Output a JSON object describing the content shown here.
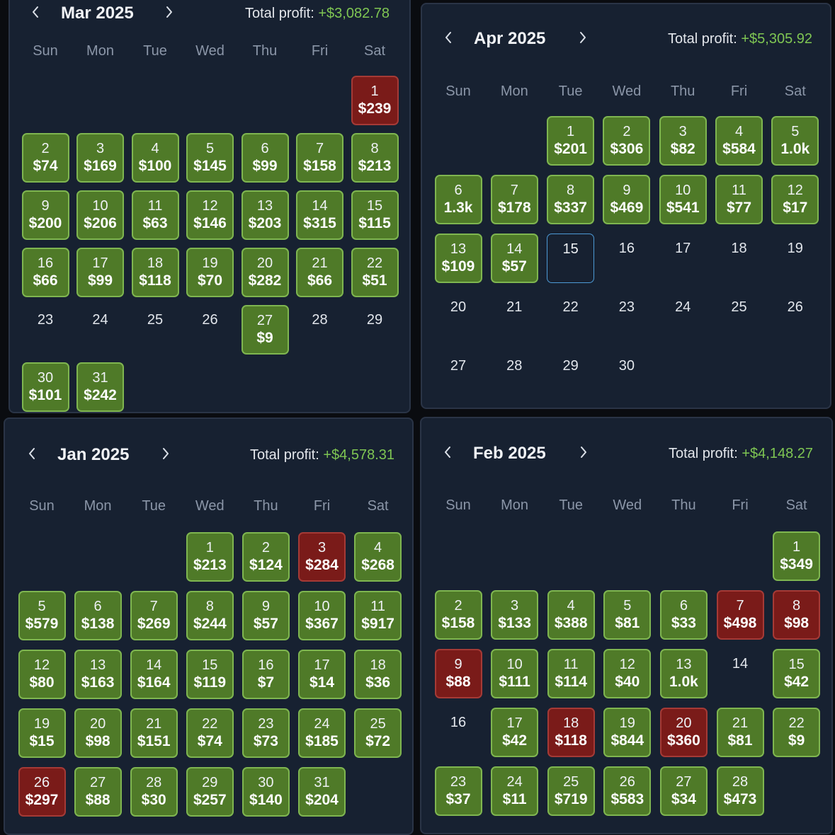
{
  "weekdays": [
    "Sun",
    "Mon",
    "Tue",
    "Wed",
    "Thu",
    "Fri",
    "Sat"
  ],
  "profit_label": "Total profit:",
  "icons": {
    "prev": "chevron-left-icon",
    "next": "chevron-right-icon"
  },
  "colors": {
    "profit_day": "#4f7a28",
    "loss_day": "#7a1b19",
    "today_border": "#4d9ad6",
    "positive_text": "#7fc653"
  },
  "calendars": [
    {
      "id": "mar",
      "title": "Mar 2025",
      "total_profit": "+$3,082.78",
      "first_weekday": 6,
      "days": [
        {
          "d": "1",
          "v": "$239",
          "s": "loss"
        },
        {
          "d": "2",
          "v": "$74",
          "s": "profit"
        },
        {
          "d": "3",
          "v": "$169",
          "s": "profit"
        },
        {
          "d": "4",
          "v": "$100",
          "s": "profit"
        },
        {
          "d": "5",
          "v": "$145",
          "s": "profit"
        },
        {
          "d": "6",
          "v": "$99",
          "s": "profit"
        },
        {
          "d": "7",
          "v": "$158",
          "s": "profit"
        },
        {
          "d": "8",
          "v": "$213",
          "s": "profit"
        },
        {
          "d": "9",
          "v": "$200",
          "s": "profit"
        },
        {
          "d": "10",
          "v": "$206",
          "s": "profit"
        },
        {
          "d": "11",
          "v": "$63",
          "s": "profit"
        },
        {
          "d": "12",
          "v": "$146",
          "s": "profit"
        },
        {
          "d": "13",
          "v": "$203",
          "s": "profit"
        },
        {
          "d": "14",
          "v": "$315",
          "s": "profit"
        },
        {
          "d": "15",
          "v": "$115",
          "s": "profit"
        },
        {
          "d": "16",
          "v": "$66",
          "s": "profit"
        },
        {
          "d": "17",
          "v": "$99",
          "s": "profit"
        },
        {
          "d": "18",
          "v": "$118",
          "s": "profit"
        },
        {
          "d": "19",
          "v": "$70",
          "s": "profit"
        },
        {
          "d": "20",
          "v": "$282",
          "s": "profit"
        },
        {
          "d": "21",
          "v": "$66",
          "s": "profit"
        },
        {
          "d": "22",
          "v": "$51",
          "s": "profit"
        },
        {
          "d": "23",
          "v": "",
          "s": "none"
        },
        {
          "d": "24",
          "v": "",
          "s": "none"
        },
        {
          "d": "25",
          "v": "",
          "s": "none"
        },
        {
          "d": "26",
          "v": "",
          "s": "none"
        },
        {
          "d": "27",
          "v": "$9",
          "s": "profit"
        },
        {
          "d": "28",
          "v": "",
          "s": "none"
        },
        {
          "d": "29",
          "v": "",
          "s": "none"
        },
        {
          "d": "30",
          "v": "$101",
          "s": "profit"
        },
        {
          "d": "31",
          "v": "$242",
          "s": "profit"
        }
      ]
    },
    {
      "id": "apr",
      "title": "Apr 2025",
      "total_profit": "+$5,305.92",
      "first_weekday": 2,
      "days": [
        {
          "d": "1",
          "v": "$201",
          "s": "profit"
        },
        {
          "d": "2",
          "v": "$306",
          "s": "profit"
        },
        {
          "d": "3",
          "v": "$82",
          "s": "profit"
        },
        {
          "d": "4",
          "v": "$584",
          "s": "profit"
        },
        {
          "d": "5",
          "v": "1.0k",
          "s": "profit"
        },
        {
          "d": "6",
          "v": "1.3k",
          "s": "profit"
        },
        {
          "d": "7",
          "v": "$178",
          "s": "profit"
        },
        {
          "d": "8",
          "v": "$337",
          "s": "profit"
        },
        {
          "d": "9",
          "v": "$469",
          "s": "profit"
        },
        {
          "d": "10",
          "v": "$541",
          "s": "profit"
        },
        {
          "d": "11",
          "v": "$77",
          "s": "profit"
        },
        {
          "d": "12",
          "v": "$17",
          "s": "profit"
        },
        {
          "d": "13",
          "v": "$109",
          "s": "profit"
        },
        {
          "d": "14",
          "v": "$57",
          "s": "profit"
        },
        {
          "d": "15",
          "v": "",
          "s": "today"
        },
        {
          "d": "16",
          "v": "",
          "s": "none"
        },
        {
          "d": "17",
          "v": "",
          "s": "none"
        },
        {
          "d": "18",
          "v": "",
          "s": "none"
        },
        {
          "d": "19",
          "v": "",
          "s": "none"
        },
        {
          "d": "20",
          "v": "",
          "s": "none"
        },
        {
          "d": "21",
          "v": "",
          "s": "none"
        },
        {
          "d": "22",
          "v": "",
          "s": "none"
        },
        {
          "d": "23",
          "v": "",
          "s": "none"
        },
        {
          "d": "24",
          "v": "",
          "s": "none"
        },
        {
          "d": "25",
          "v": "",
          "s": "none"
        },
        {
          "d": "26",
          "v": "",
          "s": "none"
        },
        {
          "d": "27",
          "v": "",
          "s": "none"
        },
        {
          "d": "28",
          "v": "",
          "s": "none"
        },
        {
          "d": "29",
          "v": "",
          "s": "none"
        },
        {
          "d": "30",
          "v": "",
          "s": "none"
        }
      ]
    },
    {
      "id": "jan",
      "title": "Jan 2025",
      "total_profit": "+$4,578.31",
      "first_weekday": 3,
      "days": [
        {
          "d": "1",
          "v": "$213",
          "s": "profit"
        },
        {
          "d": "2",
          "v": "$124",
          "s": "profit"
        },
        {
          "d": "3",
          "v": "$284",
          "s": "loss"
        },
        {
          "d": "4",
          "v": "$268",
          "s": "profit"
        },
        {
          "d": "5",
          "v": "$579",
          "s": "profit"
        },
        {
          "d": "6",
          "v": "$138",
          "s": "profit"
        },
        {
          "d": "7",
          "v": "$269",
          "s": "profit"
        },
        {
          "d": "8",
          "v": "$244",
          "s": "profit"
        },
        {
          "d": "9",
          "v": "$57",
          "s": "profit"
        },
        {
          "d": "10",
          "v": "$367",
          "s": "profit"
        },
        {
          "d": "11",
          "v": "$917",
          "s": "profit"
        },
        {
          "d": "12",
          "v": "$80",
          "s": "profit"
        },
        {
          "d": "13",
          "v": "$163",
          "s": "profit"
        },
        {
          "d": "14",
          "v": "$164",
          "s": "profit"
        },
        {
          "d": "15",
          "v": "$119",
          "s": "profit"
        },
        {
          "d": "16",
          "v": "$7",
          "s": "profit"
        },
        {
          "d": "17",
          "v": "$14",
          "s": "profit"
        },
        {
          "d": "18",
          "v": "$36",
          "s": "profit"
        },
        {
          "d": "19",
          "v": "$15",
          "s": "profit"
        },
        {
          "d": "20",
          "v": "$98",
          "s": "profit"
        },
        {
          "d": "21",
          "v": "$151",
          "s": "profit"
        },
        {
          "d": "22",
          "v": "$74",
          "s": "profit"
        },
        {
          "d": "23",
          "v": "$73",
          "s": "profit"
        },
        {
          "d": "24",
          "v": "$185",
          "s": "profit"
        },
        {
          "d": "25",
          "v": "$72",
          "s": "profit"
        },
        {
          "d": "26",
          "v": "$297",
          "s": "loss"
        },
        {
          "d": "27",
          "v": "$88",
          "s": "profit"
        },
        {
          "d": "28",
          "v": "$30",
          "s": "profit"
        },
        {
          "d": "29",
          "v": "$257",
          "s": "profit"
        },
        {
          "d": "30",
          "v": "$140",
          "s": "profit"
        },
        {
          "d": "31",
          "v": "$204",
          "s": "profit"
        }
      ]
    },
    {
      "id": "feb",
      "title": "Feb 2025",
      "total_profit": "+$4,148.27",
      "first_weekday": 6,
      "days": [
        {
          "d": "1",
          "v": "$349",
          "s": "profit"
        },
        {
          "d": "2",
          "v": "$158",
          "s": "profit"
        },
        {
          "d": "3",
          "v": "$133",
          "s": "profit"
        },
        {
          "d": "4",
          "v": "$388",
          "s": "profit"
        },
        {
          "d": "5",
          "v": "$81",
          "s": "profit"
        },
        {
          "d": "6",
          "v": "$33",
          "s": "profit"
        },
        {
          "d": "7",
          "v": "$498",
          "s": "loss"
        },
        {
          "d": "8",
          "v": "$98",
          "s": "loss"
        },
        {
          "d": "9",
          "v": "$88",
          "s": "loss"
        },
        {
          "d": "10",
          "v": "$111",
          "s": "profit"
        },
        {
          "d": "11",
          "v": "$114",
          "s": "profit"
        },
        {
          "d": "12",
          "v": "$40",
          "s": "profit"
        },
        {
          "d": "13",
          "v": "1.0k",
          "s": "profit"
        },
        {
          "d": "14",
          "v": "",
          "s": "none"
        },
        {
          "d": "15",
          "v": "$42",
          "s": "profit"
        },
        {
          "d": "16",
          "v": "",
          "s": "none"
        },
        {
          "d": "17",
          "v": "$42",
          "s": "profit"
        },
        {
          "d": "18",
          "v": "$118",
          "s": "loss"
        },
        {
          "d": "19",
          "v": "$844",
          "s": "profit"
        },
        {
          "d": "20",
          "v": "$360",
          "s": "loss"
        },
        {
          "d": "21",
          "v": "$81",
          "s": "profit"
        },
        {
          "d": "22",
          "v": "$9",
          "s": "profit"
        },
        {
          "d": "23",
          "v": "$37",
          "s": "profit"
        },
        {
          "d": "24",
          "v": "$11",
          "s": "profit"
        },
        {
          "d": "25",
          "v": "$719",
          "s": "profit"
        },
        {
          "d": "26",
          "v": "$583",
          "s": "profit"
        },
        {
          "d": "27",
          "v": "$34",
          "s": "profit"
        },
        {
          "d": "28",
          "v": "$473",
          "s": "profit"
        }
      ]
    }
  ]
}
